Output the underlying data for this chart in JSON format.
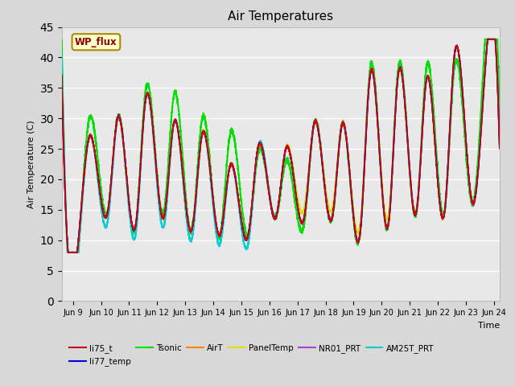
{
  "title": "Air Temperatures",
  "xlabel": "Time",
  "ylabel": "Air Temperature (C)",
  "ylim": [
    0,
    45
  ],
  "yticks": [
    0,
    5,
    10,
    15,
    20,
    25,
    30,
    35,
    40,
    45
  ],
  "xlim_start": 8.6,
  "xlim_end": 24.2,
  "xtick_labels": [
    "Jun 9",
    "Jun 10",
    "Jun 11",
    "Jun 12",
    "Jun 13",
    "Jun 14",
    "Jun 15",
    "Jun 16",
    "Jun 17",
    "Jun 18",
    "Jun 19",
    "Jun 20",
    "Jun 21",
    "Jun 22",
    "Jun 23",
    "Jun 24"
  ],
  "xtick_positions": [
    9,
    10,
    11,
    12,
    13,
    14,
    15,
    16,
    17,
    18,
    19,
    20,
    21,
    22,
    23,
    24
  ],
  "series": {
    "li75_t": {
      "color": "#cc0000",
      "lw": 1.2
    },
    "li77_temp": {
      "color": "#0000cc",
      "lw": 1.2
    },
    "Tsonic": {
      "color": "#00dd00",
      "lw": 1.5
    },
    "AirT": {
      "color": "#ff8800",
      "lw": 1.2
    },
    "PanelTemp": {
      "color": "#dddd00",
      "lw": 1.2
    },
    "NR01_PRT": {
      "color": "#aa44cc",
      "lw": 1.2
    },
    "AM25T_PRT": {
      "color": "#00cccc",
      "lw": 1.5
    }
  },
  "annotation_text": "WP_flux",
  "bg_color": "#d8d8d8",
  "plot_bg_color": "#e8e8e8",
  "grid_color": "#ffffff",
  "band1_color": "#dcdcdc",
  "band2_color": "#e8e8e8"
}
